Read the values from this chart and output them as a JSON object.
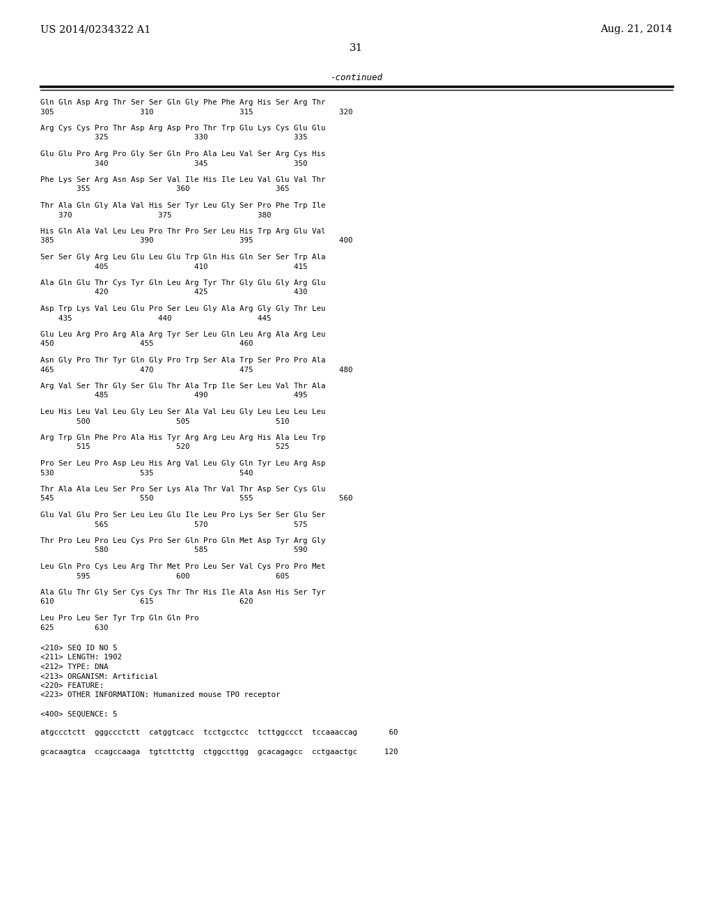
{
  "header_left": "US 2014/0234322 A1",
  "header_right": "Aug. 21, 2014",
  "page_number": "31",
  "continued_label": "-continued",
  "background_color": "#ffffff",
  "text_color": "#000000",
  "serif_font": "DejaVu Serif",
  "mono_font": "DejaVu Sans Mono",
  "seq_lines": [
    [
      "Gln Gln Asp Arg Thr Ser Ser Gln Gly Phe Phe Arg His Ser Arg Thr",
      "305                   310                   315                   320"
    ],
    [
      "Arg Cys Cys Pro Thr Asp Arg Asp Pro Thr Trp Glu Lys Cys Glu Glu",
      "            325                   330                   335"
    ],
    [
      "Glu Glu Pro Arg Pro Gly Ser Gln Pro Ala Leu Val Ser Arg Cys His",
      "            340                   345                   350"
    ],
    [
      "Phe Lys Ser Arg Asn Asp Ser Val Ile His Ile Leu Val Glu Val Thr",
      "        355                   360                   365"
    ],
    [
      "Thr Ala Gln Gly Ala Val His Ser Tyr Leu Gly Ser Pro Phe Trp Ile",
      "    370                   375                   380"
    ],
    [
      "His Gln Ala Val Leu Leu Pro Thr Pro Ser Leu His Trp Arg Glu Val",
      "385                   390                   395                   400"
    ],
    [
      "Ser Ser Gly Arg Leu Glu Leu Glu Trp Gln His Gln Ser Ser Trp Ala",
      "            405                   410                   415"
    ],
    [
      "Ala Gln Glu Thr Cys Tyr Gln Leu Arg Tyr Thr Gly Glu Gly Arg Glu",
      "            420                   425                   430"
    ],
    [
      "Asp Trp Lys Val Leu Glu Pro Ser Leu Gly Ala Arg Gly Gly Thr Leu",
      "    435                   440                   445"
    ],
    [
      "Glu Leu Arg Pro Arg Ala Arg Tyr Ser Leu Gln Leu Arg Ala Arg Leu",
      "450                   455                   460"
    ],
    [
      "Asn Gly Pro Thr Tyr Gln Gly Pro Trp Ser Ala Trp Ser Pro Pro Ala",
      "465                   470                   475                   480"
    ],
    [
      "Arg Val Ser Thr Gly Ser Glu Thr Ala Trp Ile Ser Leu Val Thr Ala",
      "            485                   490                   495"
    ],
    [
      "Leu His Leu Val Leu Gly Leu Ser Ala Val Leu Gly Leu Leu Leu Leu",
      "        500                   505                   510"
    ],
    [
      "Arg Trp Gln Phe Pro Ala His Tyr Arg Arg Leu Arg His Ala Leu Trp",
      "        515                   520                   525"
    ],
    [
      "Pro Ser Leu Pro Asp Leu His Arg Val Leu Gly Gln Tyr Leu Arg Asp",
      "530                   535                   540"
    ],
    [
      "Thr Ala Ala Leu Ser Pro Ser Lys Ala Thr Val Thr Asp Ser Cys Glu",
      "545                   550                   555                   560"
    ],
    [
      "Glu Val Glu Pro Ser Leu Leu Glu Ile Leu Pro Lys Ser Ser Glu Ser",
      "            565                   570                   575"
    ],
    [
      "Thr Pro Leu Pro Leu Cys Pro Ser Gln Pro Gln Met Asp Tyr Arg Gly",
      "            580                   585                   590"
    ],
    [
      "Leu Gln Pro Cys Leu Arg Thr Met Pro Leu Ser Val Cys Pro Pro Met",
      "        595                   600                   605"
    ],
    [
      "Ala Glu Thr Gly Ser Cys Cys Thr Thr His Ile Ala Asn His Ser Tyr",
      "610                   615                   620"
    ],
    [
      "Leu Pro Leu Ser Tyr Trp Gln Gln Pro",
      "625         630"
    ]
  ],
  "meta_lines": [
    "<210> SEQ ID NO 5",
    "<211> LENGTH: 1902",
    "<212> TYPE: DNA",
    "<213> ORGANISM: Artificial",
    "<220> FEATURE:",
    "<223> OTHER INFORMATION: Humanized mouse TPO receptor"
  ],
  "seq400_label": "<400> SEQUENCE: 5",
  "dna_lines": [
    "atgccctctt  gggccctctt  catggtcacc  tcctgcctcc  tcttggccct  tccaaaccag       60",
    "gcacaagtca  ccagccaaga  tgtcttcttg  ctggccttgg  gcacagagcc  cctgaactgc      120"
  ]
}
